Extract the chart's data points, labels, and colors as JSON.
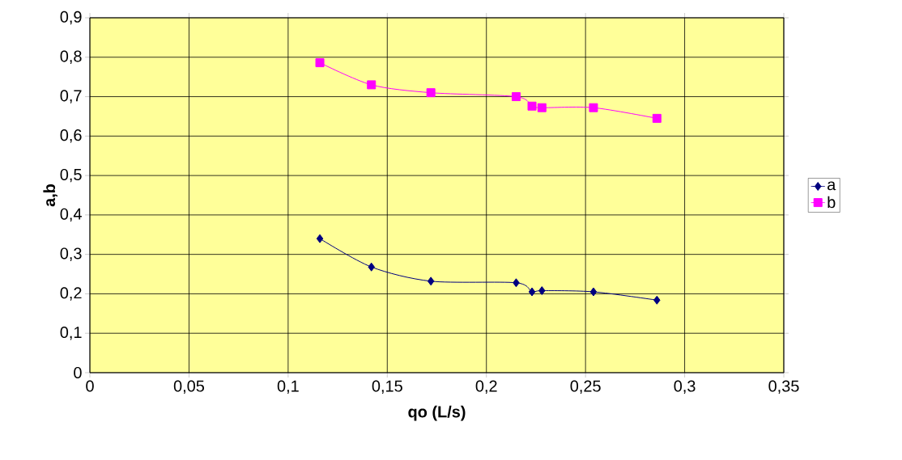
{
  "chart_data": {
    "type": "line",
    "xlabel": "qo (L/s)",
    "ylabel": "a,b",
    "x": [
      0.116,
      0.142,
      0.172,
      0.215,
      0.223,
      0.228,
      0.254,
      0.286
    ],
    "series": [
      {
        "name": "a",
        "color": "#000080",
        "marker": "diamond",
        "values": [
          0.34,
          0.268,
          0.232,
          0.228,
          0.205,
          0.208,
          0.205,
          0.184
        ]
      },
      {
        "name": "b",
        "color": "#ff00ff",
        "marker": "square",
        "values": [
          0.786,
          0.73,
          0.71,
          0.7,
          0.676,
          0.672,
          0.672,
          0.645
        ]
      }
    ],
    "xlim": [
      0,
      0.35
    ],
    "xticks": [
      {
        "value": 0,
        "label": "0"
      },
      {
        "value": 0.05,
        "label": "0,05"
      },
      {
        "value": 0.1,
        "label": "0,1"
      },
      {
        "value": 0.15,
        "label": "0,15"
      },
      {
        "value": 0.2,
        "label": "0,2"
      },
      {
        "value": 0.25,
        "label": "0,25"
      },
      {
        "value": 0.3,
        "label": "0,3"
      },
      {
        "value": 0.35,
        "label": "0,35"
      }
    ],
    "ylim": [
      0,
      0.9
    ],
    "yticks": [
      {
        "value": 0,
        "label": "0"
      },
      {
        "value": 0.1,
        "label": "0,1"
      },
      {
        "value": 0.2,
        "label": "0,2"
      },
      {
        "value": 0.3,
        "label": "0,3"
      },
      {
        "value": 0.4,
        "label": "0,4"
      },
      {
        "value": 0.5,
        "label": "0,5"
      },
      {
        "value": 0.6,
        "label": "0,6"
      },
      {
        "value": 0.7,
        "label": "0,7"
      },
      {
        "value": 0.8,
        "label": "0,8"
      },
      {
        "value": 0.9,
        "label": "0,9"
      }
    ],
    "grid": true,
    "legend": "right",
    "line_style": "solid"
  }
}
